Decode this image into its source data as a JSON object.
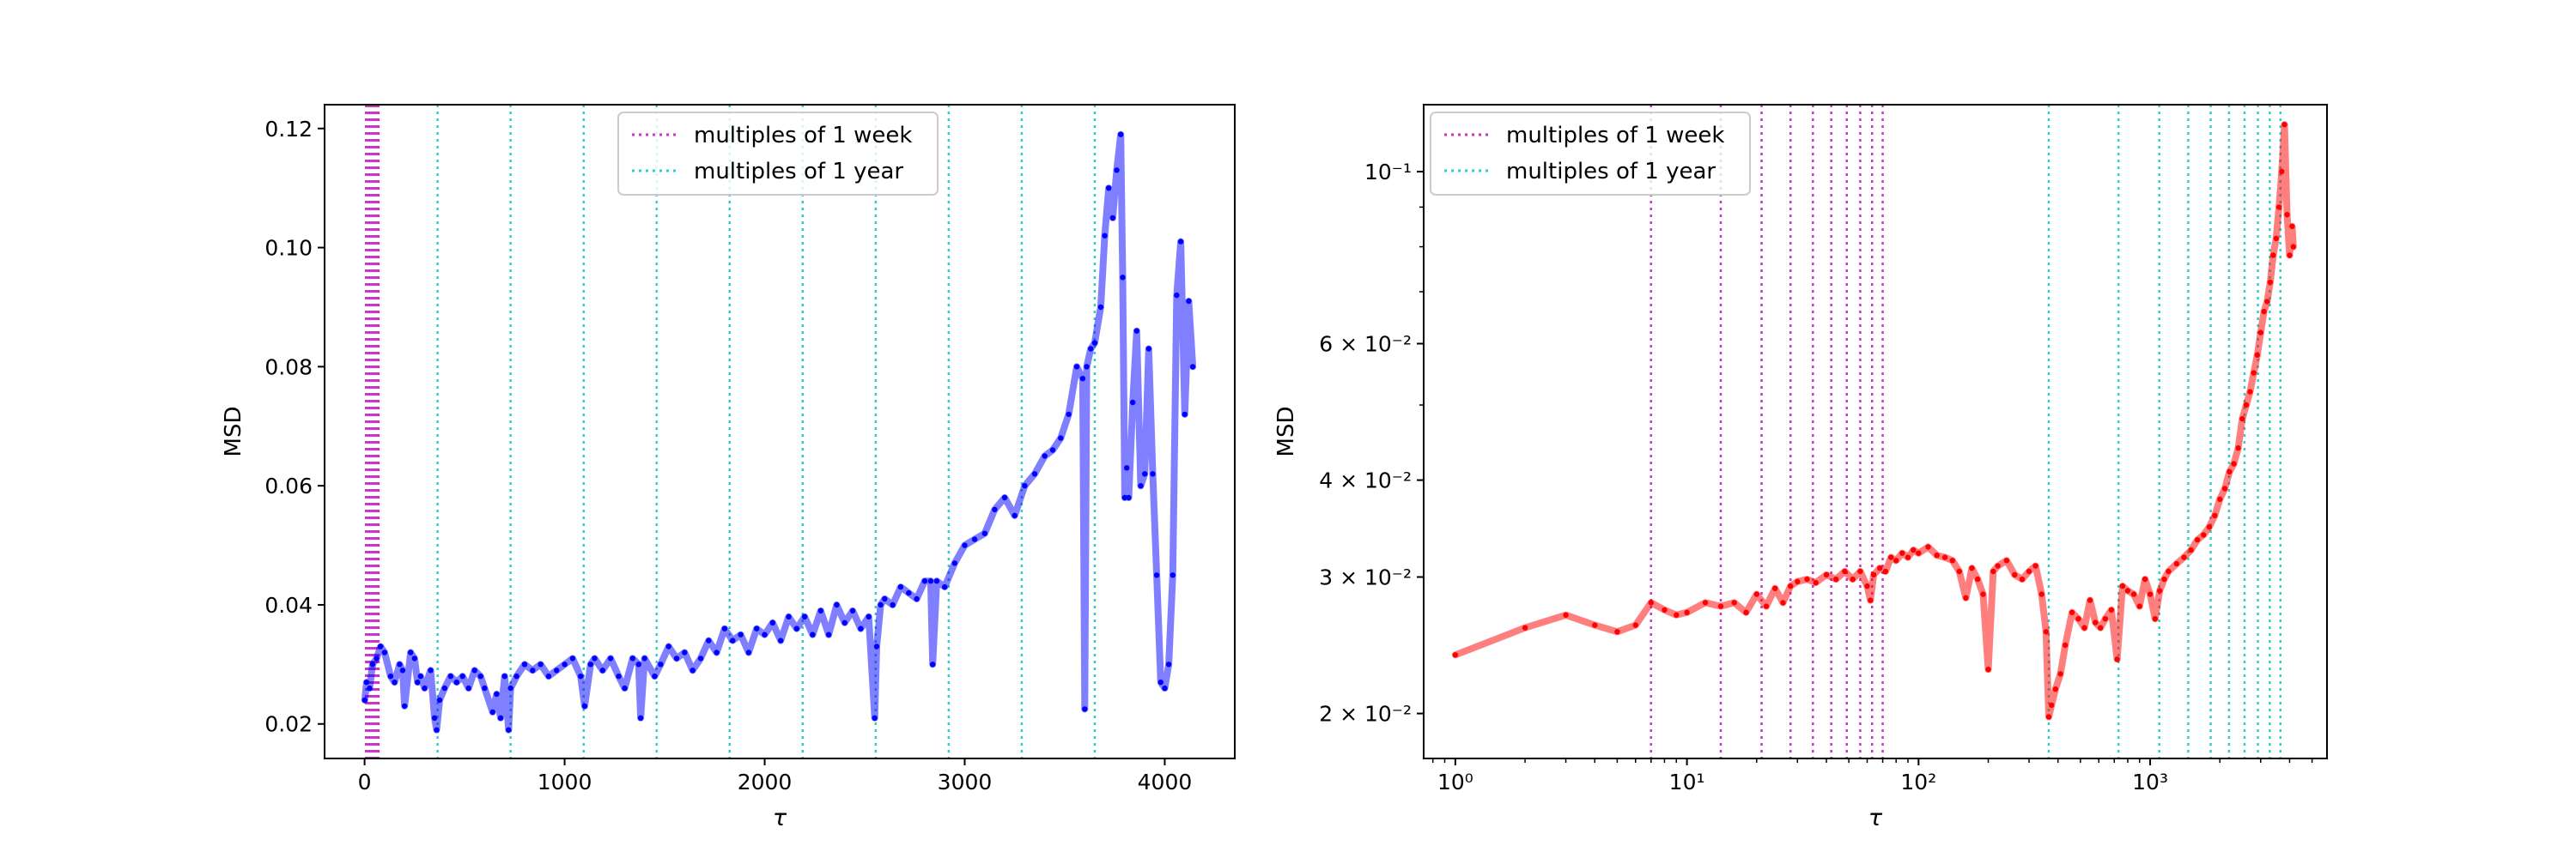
{
  "legend": {
    "week_label": "multiples of 1 week",
    "year_label": "multiples of 1 year"
  },
  "colors": {
    "week_lines": "#cc33cc",
    "year_lines": "#33cccc",
    "left_series": "#0000ff",
    "right_series": "#ff0000"
  },
  "chart_data": [
    {
      "type": "line",
      "xlabel": "τ",
      "ylabel": "MSD",
      "xscale": "linear",
      "yscale": "linear",
      "xlim": [
        -200,
        4350
      ],
      "ylim": [
        0.0142,
        0.124
      ],
      "xticks": [
        0,
        1000,
        2000,
        3000,
        4000
      ],
      "xtick_labels": [
        "0",
        "1000",
        "2000",
        "3000",
        "4000"
      ],
      "yticks": [
        0.02,
        0.04,
        0.06,
        0.08,
        0.1,
        0.12
      ],
      "ytick_labels": [
        "0.02",
        "0.04",
        "0.06",
        "0.08",
        "0.10",
        "0.12"
      ],
      "legend_position": "top-center",
      "series": [
        {
          "color": "#0000ff",
          "x": [
            1,
            10,
            25,
            40,
            60,
            80,
            100,
            130,
            150,
            175,
            190,
            200,
            230,
            250,
            265,
            280,
            300,
            330,
            350,
            360,
            375,
            400,
            430,
            460,
            490,
            520,
            550,
            580,
            600,
            640,
            660,
            680,
            700,
            720,
            730,
            760,
            800,
            840,
            880,
            920,
            960,
            1000,
            1040,
            1080,
            1100,
            1130,
            1150,
            1190,
            1230,
            1270,
            1300,
            1340,
            1370,
            1380,
            1400,
            1450,
            1480,
            1520,
            1560,
            1600,
            1640,
            1680,
            1720,
            1760,
            1800,
            1840,
            1880,
            1920,
            1960,
            2000,
            2040,
            2080,
            2120,
            2160,
            2200,
            2240,
            2280,
            2320,
            2360,
            2400,
            2440,
            2480,
            2520,
            2550,
            2560,
            2580,
            2600,
            2640,
            2680,
            2720,
            2760,
            2800,
            2830,
            2840,
            2860,
            2900,
            2950,
            3000,
            3050,
            3100,
            3150,
            3200,
            3250,
            3300,
            3350,
            3400,
            3440,
            3480,
            3520,
            3560,
            3590,
            3600,
            3610,
            3630,
            3650,
            3680,
            3700,
            3720,
            3740,
            3760,
            3780,
            3790,
            3800,
            3810,
            3820,
            3840,
            3860,
            3880,
            3900,
            3920,
            3940,
            3960,
            3980,
            4000,
            4020,
            4040,
            4060,
            4080,
            4100,
            4120,
            4140
          ],
          "y": [
            0.024,
            0.027,
            0.026,
            0.03,
            0.031,
            0.033,
            0.032,
            0.028,
            0.027,
            0.03,
            0.029,
            0.023,
            0.032,
            0.031,
            0.027,
            0.028,
            0.026,
            0.029,
            0.021,
            0.019,
            0.024,
            0.026,
            0.028,
            0.027,
            0.028,
            0.026,
            0.029,
            0.028,
            0.026,
            0.022,
            0.025,
            0.021,
            0.028,
            0.019,
            0.026,
            0.028,
            0.03,
            0.029,
            0.03,
            0.028,
            0.029,
            0.03,
            0.031,
            0.028,
            0.023,
            0.03,
            0.031,
            0.029,
            0.031,
            0.028,
            0.026,
            0.031,
            0.03,
            0.021,
            0.031,
            0.028,
            0.03,
            0.033,
            0.031,
            0.032,
            0.029,
            0.031,
            0.034,
            0.032,
            0.036,
            0.034,
            0.035,
            0.032,
            0.036,
            0.035,
            0.037,
            0.034,
            0.038,
            0.036,
            0.038,
            0.035,
            0.039,
            0.035,
            0.04,
            0.037,
            0.039,
            0.036,
            0.038,
            0.021,
            0.033,
            0.04,
            0.041,
            0.04,
            0.043,
            0.042,
            0.041,
            0.044,
            0.044,
            0.03,
            0.044,
            0.043,
            0.047,
            0.05,
            0.051,
            0.052,
            0.056,
            0.058,
            0.055,
            0.06,
            0.062,
            0.065,
            0.066,
            0.068,
            0.072,
            0.08,
            0.078,
            0.0225,
            0.08,
            0.083,
            0.084,
            0.09,
            0.102,
            0.11,
            0.105,
            0.113,
            0.119,
            0.095,
            0.058,
            0.063,
            0.058,
            0.074,
            0.086,
            0.06,
            0.062,
            0.083,
            0.062,
            0.045,
            0.027,
            0.026,
            0.03,
            0.045,
            0.092,
            0.101,
            0.072,
            0.091,
            0.08
          ]
        }
      ],
      "week_multiples": [
        7,
        14,
        21,
        28,
        35,
        42,
        49,
        56,
        63,
        70
      ],
      "year_multiples": [
        365,
        730,
        1095,
        1460,
        1825,
        2190,
        2555,
        2920,
        3285,
        3650
      ]
    },
    {
      "type": "line",
      "xlabel": "τ",
      "ylabel": "MSD",
      "xscale": "log",
      "yscale": "log",
      "xlim": [
        0.73,
        5800
      ],
      "ylim": [
        0.0175,
        0.122
      ],
      "xticks": [
        1,
        10,
        100,
        1000
      ],
      "xtick_labels": [
        "10⁰",
        "10¹",
        "10²",
        "10³"
      ],
      "yticks": [
        0.02,
        0.03,
        0.04,
        0.06,
        0.1
      ],
      "ytick_labels": [
        "2 × 10⁻²",
        "3 × 10⁻²",
        "4 × 10⁻²",
        "6 × 10⁻²",
        "10⁻¹"
      ],
      "legend_position": "top-left",
      "series": [
        {
          "color": "#ff0000",
          "x": [
            1,
            2,
            3,
            4,
            5,
            6,
            7,
            8,
            9,
            10,
            12,
            14,
            16,
            18,
            20,
            22,
            24,
            26,
            28,
            30,
            33,
            36,
            40,
            44,
            48,
            52,
            56,
            60,
            62,
            64,
            68,
            72,
            76,
            80,
            85,
            90,
            95,
            100,
            110,
            120,
            130,
            140,
            150,
            160,
            170,
            180,
            190,
            200,
            210,
            220,
            240,
            260,
            280,
            300,
            320,
            340,
            355,
            365,
            375,
            390,
            410,
            430,
            460,
            490,
            520,
            550,
            580,
            610,
            640,
            680,
            720,
            760,
            800,
            850,
            900,
            950,
            1000,
            1050,
            1100,
            1150,
            1200,
            1300,
            1400,
            1500,
            1600,
            1700,
            1800,
            1900,
            2000,
            2100,
            2200,
            2300,
            2400,
            2500,
            2600,
            2700,
            2800,
            2900,
            3000,
            3100,
            3200,
            3300,
            3400,
            3500,
            3600,
            3700,
            3800,
            3900,
            4000,
            4100,
            4150
          ],
          "y": [
            0.0238,
            0.0258,
            0.0268,
            0.026,
            0.0255,
            0.026,
            0.0278,
            0.0272,
            0.0268,
            0.027,
            0.0278,
            0.0275,
            0.0278,
            0.027,
            0.0285,
            0.0275,
            0.029,
            0.0278,
            0.0292,
            0.0296,
            0.0298,
            0.0295,
            0.0302,
            0.0298,
            0.0305,
            0.0298,
            0.0305,
            0.0292,
            0.028,
            0.0302,
            0.0308,
            0.0305,
            0.0318,
            0.0315,
            0.0322,
            0.0318,
            0.0325,
            0.0322,
            0.0328,
            0.032,
            0.0318,
            0.0315,
            0.0305,
            0.0282,
            0.0308,
            0.0298,
            0.0285,
            0.0228,
            0.0305,
            0.031,
            0.0315,
            0.0302,
            0.0298,
            0.0305,
            0.031,
            0.0285,
            0.0255,
            0.0198,
            0.0205,
            0.0215,
            0.0225,
            0.0245,
            0.027,
            0.0265,
            0.0258,
            0.028,
            0.0262,
            0.0258,
            0.0265,
            0.0272,
            0.0235,
            0.0292,
            0.0288,
            0.0285,
            0.0275,
            0.0298,
            0.0285,
            0.0265,
            0.0288,
            0.0298,
            0.0305,
            0.0312,
            0.0318,
            0.0325,
            0.0335,
            0.034,
            0.0348,
            0.036,
            0.0378,
            0.039,
            0.041,
            0.042,
            0.044,
            0.048,
            0.05,
            0.052,
            0.055,
            0.058,
            0.062,
            0.066,
            0.068,
            0.072,
            0.078,
            0.082,
            0.09,
            0.1,
            0.115,
            0.088,
            0.078,
            0.085,
            0.08
          ]
        }
      ],
      "week_multiples": [
        7,
        14,
        21,
        28,
        35,
        42,
        49,
        56,
        63,
        70
      ],
      "year_multiples": [
        365,
        730,
        1095,
        1460,
        1825,
        2190,
        2555,
        2920,
        3285,
        3650
      ]
    }
  ]
}
